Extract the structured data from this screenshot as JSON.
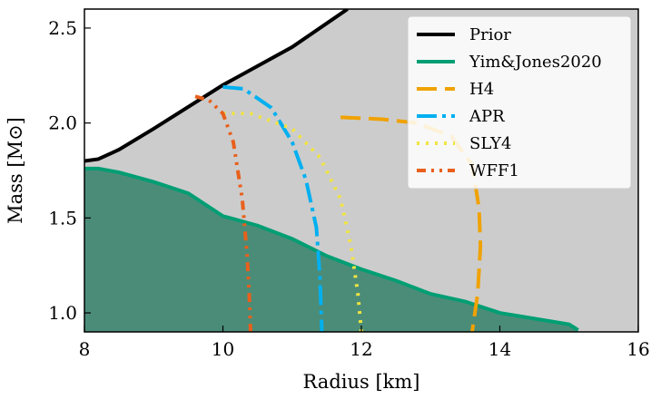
{
  "chart_data": {
    "type": "line",
    "title": "",
    "xlabel": "Radius [km]",
    "ylabel": "Mass [M⊙]",
    "xlim": [
      8,
      16
    ],
    "ylim": [
      0.9,
      2.6
    ],
    "x_ticks": [
      "8",
      "10",
      "12",
      "14",
      "16"
    ],
    "y_ticks": [
      "1.0",
      "1.5",
      "2.0",
      "2.5"
    ],
    "grid": false,
    "legend_position": "top-right",
    "background": "#cccccc",
    "series": [
      {
        "name": "Prior",
        "color": "#000000",
        "style": "solid",
        "points": [
          [
            8.0,
            1.8
          ],
          [
            8.2,
            1.81
          ],
          [
            8.5,
            1.86
          ],
          [
            9.0,
            1.97
          ],
          [
            10.0,
            2.2
          ],
          [
            11.0,
            2.4
          ],
          [
            11.8,
            2.6
          ]
        ]
      },
      {
        "name": "Yim&Jones2020",
        "color": "#009e73",
        "style": "filled",
        "points": [
          [
            8.0,
            1.76
          ],
          [
            8.2,
            1.76
          ],
          [
            8.5,
            1.74
          ],
          [
            9.0,
            1.69
          ],
          [
            9.5,
            1.63
          ],
          [
            10.0,
            1.51
          ],
          [
            10.5,
            1.46
          ],
          [
            11.0,
            1.39
          ],
          [
            11.5,
            1.3
          ],
          [
            12.0,
            1.23
          ],
          [
            12.5,
            1.17
          ],
          [
            13.0,
            1.1
          ],
          [
            13.5,
            1.06
          ],
          [
            14.0,
            1.0
          ],
          [
            14.5,
            0.97
          ],
          [
            15.0,
            0.94
          ],
          [
            15.13,
            0.91
          ]
        ]
      },
      {
        "name": "H4",
        "color": "#f0a202",
        "style": "dashed",
        "points": [
          [
            11.7,
            2.03
          ],
          [
            12.3,
            2.02
          ],
          [
            12.8,
            2.0
          ],
          [
            13.3,
            1.93
          ],
          [
            13.6,
            1.78
          ],
          [
            13.7,
            1.55
          ],
          [
            13.72,
            1.35
          ],
          [
            13.68,
            1.1
          ],
          [
            13.6,
            0.9
          ]
        ]
      },
      {
        "name": "APR",
        "color": "#00b0f0",
        "style": "dashdot",
        "points": [
          [
            10.0,
            2.19
          ],
          [
            10.3,
            2.18
          ],
          [
            10.7,
            2.08
          ],
          [
            11.0,
            1.9
          ],
          [
            11.2,
            1.7
          ],
          [
            11.35,
            1.45
          ],
          [
            11.4,
            1.2
          ],
          [
            11.42,
            1.0
          ],
          [
            11.43,
            0.9
          ]
        ]
      },
      {
        "name": "SLY4",
        "color": "#f0e442",
        "style": "dotted",
        "points": [
          [
            10.0,
            2.05
          ],
          [
            10.4,
            2.05
          ],
          [
            11.0,
            1.97
          ],
          [
            11.4,
            1.82
          ],
          [
            11.7,
            1.6
          ],
          [
            11.85,
            1.35
          ],
          [
            11.95,
            1.1
          ],
          [
            12.0,
            0.9
          ]
        ]
      },
      {
        "name": "WFF1",
        "color": "#e8601c",
        "style": "dashdotdot",
        "points": [
          [
            9.6,
            2.14
          ],
          [
            9.8,
            2.12
          ],
          [
            10.0,
            2.05
          ],
          [
            10.15,
            1.9
          ],
          [
            10.28,
            1.6
          ],
          [
            10.35,
            1.3
          ],
          [
            10.38,
            1.1
          ],
          [
            10.4,
            0.9
          ]
        ]
      }
    ]
  }
}
